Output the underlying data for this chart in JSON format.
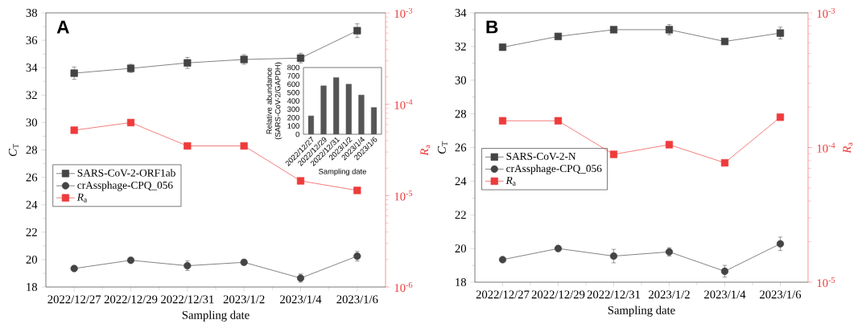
{
  "chart_data": [
    {
      "type": "line",
      "title": "A",
      "xlabel": "Sampling date",
      "ylabel": "*C*$_{T}$",
      "y2label": "*R*$_{a}$",
      "categories": [
        "2022/12/27",
        "2022/12/29",
        "2022/12/31",
        "2023/1/2",
        "2023/1/4",
        "2023/1/6"
      ],
      "ylim": [
        18,
        38
      ],
      "yticks": [
        18,
        20,
        22,
        24,
        26,
        28,
        30,
        32,
        34,
        36,
        38
      ],
      "y2lim": [
        1e-06,
        0.001
      ],
      "y2ticks": [
        {
          "value": 1e-06,
          "label": "10$^{-6}$"
        },
        {
          "value": 1e-05,
          "label": "10$^{-5}$"
        },
        {
          "value": 0.0001,
          "label": "10$^{-4}$"
        },
        {
          "value": 0.001,
          "label": "10$^{-3}$"
        }
      ],
      "log": "y2",
      "legend": "left",
      "series": [
        {
          "name": "SARS-CoV-2-ORF1ab",
          "color": "#444444",
          "marker": "square",
          "values": [
            33.6,
            33.95,
            34.35,
            34.6,
            34.7,
            36.7
          ],
          "errors": [
            0.45,
            0.3,
            0.4,
            0.35,
            0.35,
            0.5
          ]
        },
        {
          "name": "crAssphage-CPQ_056",
          "color": "#444444",
          "marker": "circle",
          "values": [
            19.35,
            19.95,
            19.55,
            19.8,
            18.65,
            20.25
          ],
          "errors": [
            0.15,
            0.15,
            0.35,
            0.15,
            0.3,
            0.35
          ]
        },
        {
          "name": "*R*$_{a}$",
          "color": "#ee3b3b",
          "marker": "square",
          "axis": "y2",
          "values": [
            5.2e-05,
            6.3e-05,
            3.5e-05,
            3.5e-05,
            1.45e-05,
            1.14e-05
          ]
        }
      ]
    },
    {
      "type": "bar",
      "xlabel": "Sampling date",
      "ylabel": "Relative abundance (SARS-CoV-2/GAPDH)",
      "categories": [
        "2022/12/27",
        "2022/12/29",
        "2022/12/31",
        "2023/1/2",
        "2023/1/4",
        "2023/1/6"
      ],
      "values": [
        220,
        580,
        680,
        600,
        470,
        320
      ],
      "color": "#555555",
      "ylim": [
        0,
        800
      ],
      "yticks": [
        0,
        100,
        200,
        300,
        400,
        500,
        600,
        700,
        800
      ]
    },
    {
      "type": "line",
      "title": "B",
      "xlabel": "Sampling date",
      "ylabel": "*C*$_{T}$",
      "y2label": "*R*$_{a}$",
      "categories": [
        "2022/12/27",
        "2022/12/29",
        "2022/12/31",
        "2023/1/2",
        "2023/1/4",
        "2023/1/6"
      ],
      "ylim": [
        18,
        34
      ],
      "yticks": [
        18,
        20,
        22,
        24,
        26,
        28,
        30,
        32,
        34
      ],
      "y2lim": [
        1e-05,
        0.001
      ],
      "y2ticks": [
        {
          "value": 1e-05,
          "label": "10$^{-5}$"
        },
        {
          "value": 0.0001,
          "label": "10$^{-4}$"
        },
        {
          "value": 0.001,
          "label": "10$^{-3}$"
        }
      ],
      "log": "y2",
      "legend": "left",
      "series": [
        {
          "name": "SARS-CoV-2-N",
          "color": "#444444",
          "marker": "square",
          "values": [
            31.96,
            32.6,
            33.0,
            33.0,
            32.3,
            32.8
          ],
          "errors": [
            0.1,
            0.1,
            0.1,
            0.3,
            0.1,
            0.35
          ]
        },
        {
          "name": "crAssphage-CPQ_056",
          "color": "#444444",
          "marker": "circle",
          "values": [
            19.34,
            20.0,
            19.55,
            19.8,
            18.65,
            20.28
          ],
          "errors": [
            0.1,
            0.1,
            0.4,
            0.25,
            0.35,
            0.4
          ]
        },
        {
          "name": "*R*$_{a}$",
          "color": "#ee3b3b",
          "marker": "square",
          "axis": "y2",
          "values": [
            0.000158,
            0.000158,
            8.9e-05,
            0.000105,
            7.7e-05,
            0.000168
          ]
        }
      ]
    }
  ]
}
